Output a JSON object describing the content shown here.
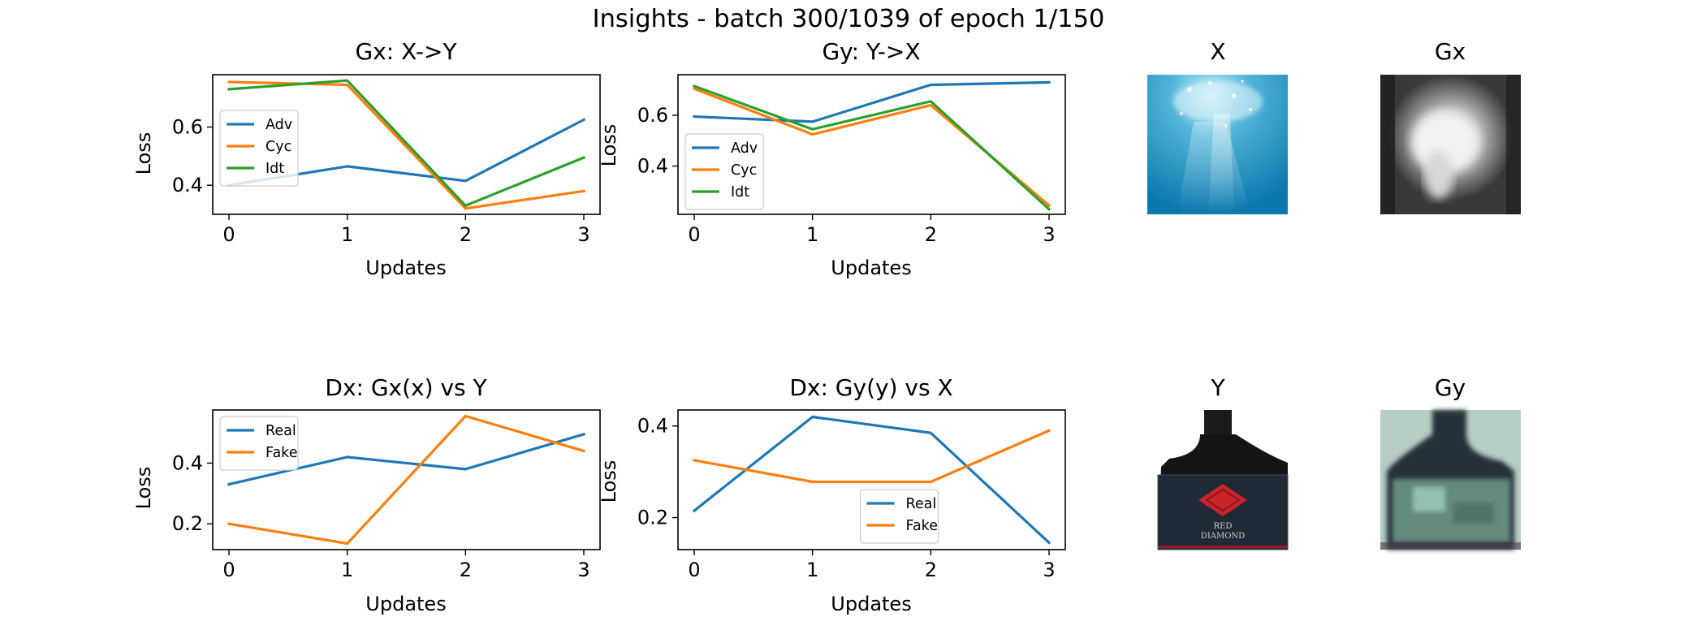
{
  "suptitle": "Insights - batch 300/1039 of epoch 1/150",
  "colors": {
    "blue": "#1f77b4",
    "orange": "#ff7f0e",
    "green": "#2ca02c"
  },
  "chart_data": [
    {
      "id": "gx",
      "type": "line",
      "title": "Gx: X->Y",
      "xlabel": "Updates",
      "ylabel": "Loss",
      "x": [
        0,
        1,
        2,
        3
      ],
      "xticks": [
        0,
        1,
        2,
        3
      ],
      "yticks": [
        0.4,
        0.6
      ],
      "ylim": [
        0.3,
        0.78
      ],
      "legend": "upper-left",
      "series": [
        {
          "name": "Adv",
          "color": "#1f77b4",
          "values": [
            0.4,
            0.465,
            0.415,
            0.625
          ]
        },
        {
          "name": "Cyc",
          "color": "#ff7f0e",
          "values": [
            0.755,
            0.745,
            0.32,
            0.38
          ]
        },
        {
          "name": "Idt",
          "color": "#2ca02c",
          "values": [
            0.73,
            0.76,
            0.33,
            0.495
          ]
        }
      ]
    },
    {
      "id": "gy",
      "type": "line",
      "title": "Gy: Y->X",
      "xlabel": "Updates",
      "ylabel": "Loss",
      "x": [
        0,
        1,
        2,
        3
      ],
      "xticks": [
        0,
        1,
        2,
        3
      ],
      "yticks": [
        0.4,
        0.6
      ],
      "ylim": [
        0.21,
        0.76
      ],
      "legend": "lower-left",
      "series": [
        {
          "name": "Adv",
          "color": "#1f77b4",
          "values": [
            0.595,
            0.575,
            0.72,
            0.73
          ]
        },
        {
          "name": "Cyc",
          "color": "#ff7f0e",
          "values": [
            0.705,
            0.525,
            0.64,
            0.245
          ]
        },
        {
          "name": "Idt",
          "color": "#2ca02c",
          "values": [
            0.715,
            0.545,
            0.655,
            0.23
          ]
        }
      ]
    },
    {
      "id": "dx1",
      "type": "line",
      "title": "Dx: Gx(x) vs Y",
      "xlabel": "Updates",
      "ylabel": "Loss",
      "x": [
        0,
        1,
        2,
        3
      ],
      "xticks": [
        0,
        1,
        2,
        3
      ],
      "yticks": [
        0.2,
        0.4
      ],
      "ylim": [
        0.115,
        0.575
      ],
      "legend": "upper-left",
      "series": [
        {
          "name": "Real",
          "color": "#1f77b4",
          "values": [
            0.33,
            0.42,
            0.38,
            0.495
          ]
        },
        {
          "name": "Fake",
          "color": "#ff7f0e",
          "values": [
            0.2,
            0.135,
            0.555,
            0.44
          ]
        }
      ]
    },
    {
      "id": "dx2",
      "type": "line",
      "title": "Dx: Gy(y) vs X",
      "xlabel": "Updates",
      "ylabel": "Loss",
      "x": [
        0,
        1,
        2,
        3
      ],
      "xticks": [
        0,
        1,
        2,
        3
      ],
      "yticks": [
        0.2,
        0.4
      ],
      "ylim": [
        0.13,
        0.435
      ],
      "legend": "lower-center",
      "series": [
        {
          "name": "Real",
          "color": "#1f77b4",
          "values": [
            0.215,
            0.42,
            0.385,
            0.145
          ]
        },
        {
          "name": "Fake",
          "color": "#ff7f0e",
          "values": [
            0.325,
            0.278,
            0.278,
            0.39
          ]
        }
      ]
    }
  ],
  "images": [
    {
      "id": "x",
      "title": "X",
      "depicts": "underwater-bubbles"
    },
    {
      "id": "gx",
      "title": "Gx",
      "depicts": "grayscale-blurred-translation"
    },
    {
      "id": "y",
      "title": "Y",
      "depicts": "wine-bottle-red-diamond-label",
      "label_text": [
        "RED",
        "DIAMOND"
      ]
    },
    {
      "id": "gy",
      "title": "Gy",
      "depicts": "greenish-blurred-bottle"
    }
  ]
}
